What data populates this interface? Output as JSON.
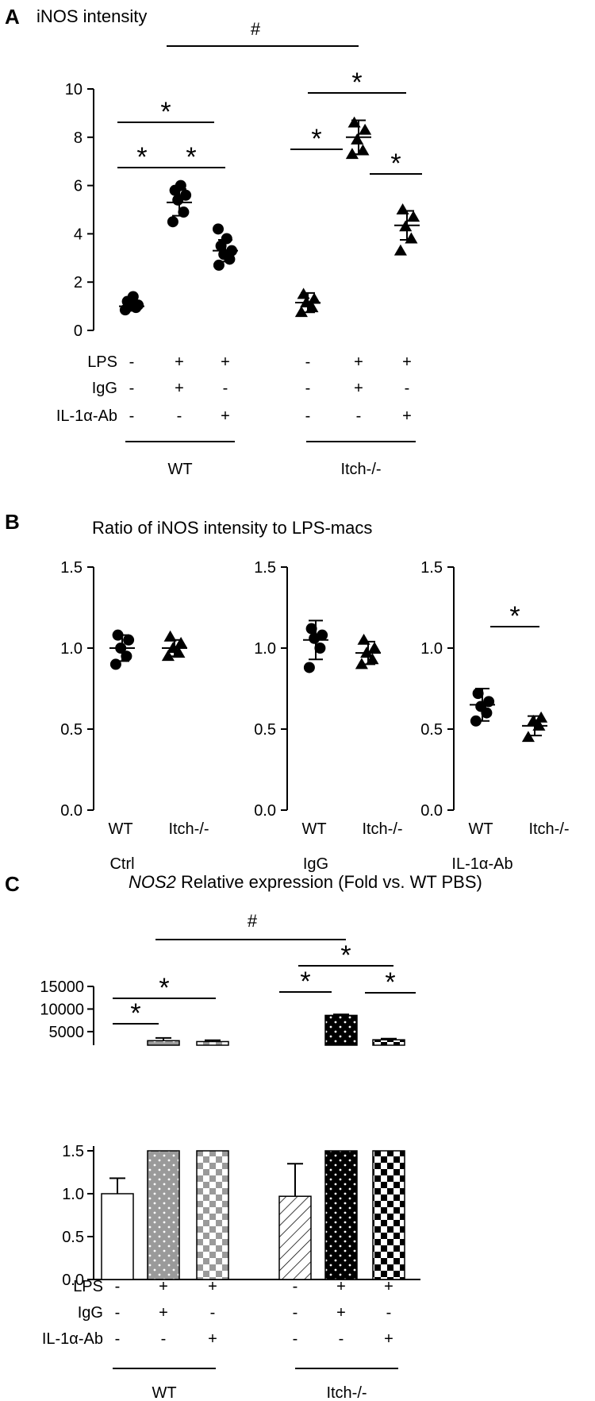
{
  "panels": {
    "A": {
      "letter": "A",
      "title": "iNOS intensity"
    },
    "B": {
      "letter": "B",
      "title": "Ratio of iNOS intensity to LPS-macs"
    },
    "C": {
      "letter": "C",
      "title_italic": "NOS2",
      "title_rest": " Relative expression (Fold vs. WT PBS)"
    }
  },
  "condition_table": {
    "rows": [
      {
        "label": "LPS",
        "signs": [
          "-",
          "+",
          "+",
          "-",
          "+",
          "+"
        ]
      },
      {
        "label": "IgG",
        "signs": [
          "-",
          "+",
          "-",
          "-",
          "+",
          "-"
        ]
      },
      {
        "label": "IL-1α-Ab",
        "signs": [
          "-",
          "-",
          "+",
          "-",
          "-",
          "+"
        ]
      }
    ],
    "groups": [
      "WT",
      "Itch-/-"
    ]
  },
  "symbols": {
    "star": "*",
    "hash": "#"
  },
  "colors": {
    "ink": "#000000",
    "gray_bar": "#9a9a9a",
    "white": "#ffffff"
  },
  "chart_data": [
    {
      "panel": "A",
      "type": "scatter",
      "title": "iNOS intensity",
      "ylim": [
        0,
        10
      ],
      "yticks": [
        "0",
        "2",
        "4",
        "6",
        "8",
        "10"
      ],
      "groups": [
        {
          "name": "WT",
          "marker": "circle",
          "mean": 1.0,
          "err": 0.15,
          "points": [
            0.85,
            0.95,
            1.0,
            1.05,
            1.2,
            1.4
          ]
        },
        {
          "name": "WT LPS+IgG",
          "marker": "circle",
          "mean": 5.3,
          "err": 0.55,
          "points": [
            4.5,
            4.9,
            5.4,
            5.6,
            5.8,
            6.0
          ]
        },
        {
          "name": "WT LPS+IL-1α-Ab",
          "marker": "circle",
          "mean": 3.3,
          "err": 0.45,
          "points": [
            2.7,
            2.95,
            3.15,
            3.3,
            3.5,
            3.8,
            4.2
          ]
        },
        {
          "name": "Itch-/-",
          "marker": "triangle",
          "mean": 1.15,
          "err": 0.4,
          "points": [
            0.75,
            0.95,
            1.15,
            1.3,
            1.5
          ]
        },
        {
          "name": "Itch-/- LPS+IgG",
          "marker": "triangle",
          "mean": 8.0,
          "err": 0.7,
          "points": [
            7.3,
            7.45,
            7.9,
            8.3,
            8.6
          ]
        },
        {
          "name": "Itch-/- LPS+IL-1α-Ab",
          "marker": "triangle",
          "mean": 4.35,
          "err": 0.6,
          "points": [
            3.3,
            3.8,
            4.3,
            4.7,
            5.0
          ]
        }
      ]
    },
    {
      "panel": "B",
      "type": "scatter",
      "title": "Ratio of iNOS intensity to LPS-macs",
      "ylim": [
        0,
        1.5
      ],
      "yticks": [
        "0.0",
        "0.5",
        "1.0",
        "1.5"
      ],
      "subplots": [
        {
          "name": "Ctrl",
          "categories": [
            "WT",
            "Itch-/-"
          ],
          "groups": [
            {
              "name": "WT",
              "marker": "circle",
              "mean": 1.0,
              "err": 0.08,
              "points": [
                0.9,
                0.95,
                1.0,
                1.05,
                1.08
              ]
            },
            {
              "name": "Itch-/-",
              "marker": "triangle",
              "mean": 1.0,
              "err": 0.05,
              "points": [
                0.95,
                0.97,
                1.0,
                1.03,
                1.07
              ]
            }
          ]
        },
        {
          "name": "IgG",
          "categories": [
            "WT",
            "Itch-/-"
          ],
          "groups": [
            {
              "name": "WT",
              "marker": "circle",
              "mean": 1.05,
              "err": 0.12,
              "points": [
                0.88,
                1.0,
                1.06,
                1.08,
                1.12
              ]
            },
            {
              "name": "Itch-/-",
              "marker": "triangle",
              "mean": 0.97,
              "err": 0.07,
              "points": [
                0.9,
                0.93,
                0.97,
                1.0,
                1.05
              ]
            }
          ]
        },
        {
          "name": "IL-1α-Ab",
          "categories": [
            "WT",
            "Itch-/-"
          ],
          "groups": [
            {
              "name": "WT",
              "marker": "circle",
              "mean": 0.65,
              "err": 0.1,
              "points": [
                0.55,
                0.6,
                0.64,
                0.67,
                0.72
              ]
            },
            {
              "name": "Itch-/-",
              "marker": "triangle",
              "mean": 0.52,
              "err": 0.06,
              "points": [
                0.45,
                0.52,
                0.55,
                0.57
              ]
            }
          ]
        }
      ]
    },
    {
      "panel": "C",
      "type": "bar",
      "title": "NOS2 Relative expression (Fold vs. WT PBS)",
      "upper_ylim": [
        2000,
        15000
      ],
      "upper_yticks": [
        "5000",
        "10000",
        "15000"
      ],
      "lower_ylim": [
        0,
        1.5
      ],
      "lower_yticks": [
        "0.0",
        "0.5",
        "1.0",
        "1.5"
      ],
      "groups": [
        {
          "name": "WT",
          "value": 1.0,
          "err": 0.18,
          "fill": "white"
        },
        {
          "name": "WT LPS+IgG",
          "value": 3000,
          "err": 600,
          "fill": "gray-dots"
        },
        {
          "name": "WT LPS+IL-1α-Ab",
          "value": 2800,
          "err": 300,
          "fill": "gray-checker"
        },
        {
          "name": "Itch-/-",
          "value": 0.97,
          "err": 0.38,
          "fill": "hatch"
        },
        {
          "name": "Itch-/- LPS+IgG",
          "value": 8600,
          "err": 200,
          "fill": "black-dots"
        },
        {
          "name": "Itch-/- LPS+IL-1α-Ab",
          "value": 3200,
          "err": 250,
          "fill": "black-checker"
        }
      ]
    }
  ]
}
